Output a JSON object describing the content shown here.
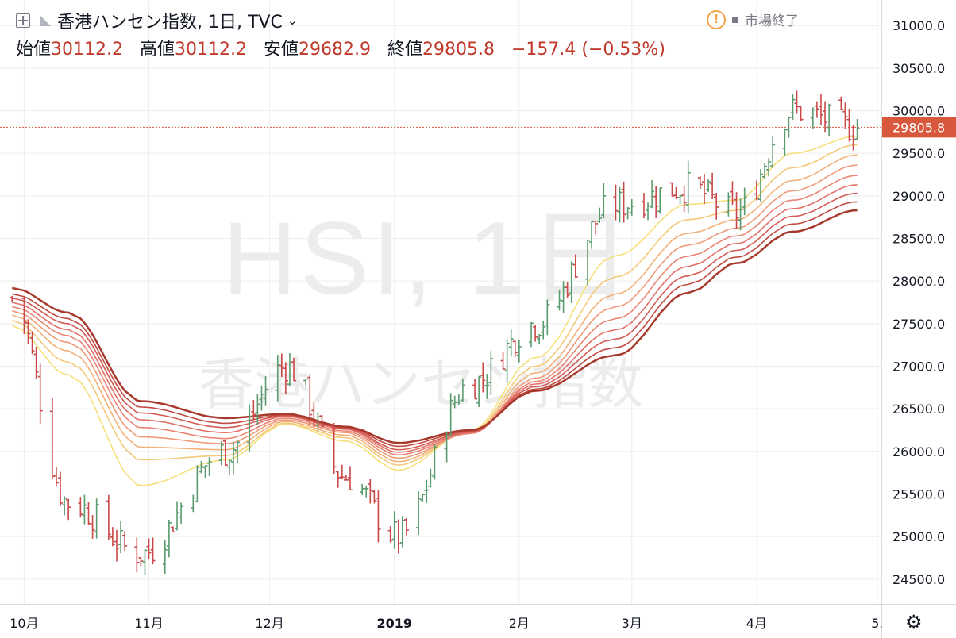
{
  "header": {
    "title": "香港ハンセン指数, 1日, TVC",
    "ohlc": {
      "open_label": "始値",
      "open": "30112.2",
      "high_label": "高値",
      "high": "30112.2",
      "low_label": "安値",
      "low": "29682.9",
      "close_label": "終値",
      "close": "29805.8",
      "change": "−157.4 (−0.53%)"
    },
    "status": "市場終了",
    "icons": [
      "plus-square-icon",
      "flag-icon",
      "chevron-down-icon",
      "warning-icon",
      "gear-icon"
    ]
  },
  "watermark": {
    "symbol": "HSI, 1日",
    "name": "香港ハンセン指数"
  },
  "colors": {
    "up": "#5a9b6d",
    "down": "#c94848",
    "grid": "#eeeeee",
    "price_tag": "#d7583c",
    "ribbon": [
      "#f5e07a",
      "#f4c97a",
      "#f2b27a",
      "#ef9a78",
      "#ea8574",
      "#e2716a",
      "#d35c55",
      "#c04a40",
      "#a8392d"
    ]
  },
  "chart_data": {
    "type": "ohlc-bars-with-moving-average-ribbon",
    "symbol": "HSI",
    "interval": "1日",
    "y_ticks": [
      24500,
      25000,
      25500,
      26000,
      26500,
      27000,
      27500,
      28000,
      28500,
      29000,
      29500,
      30000,
      30500,
      31000
    ],
    "y_tick_labels": [
      "24500.0",
      "25000.0",
      "25500.0",
      "26000.0",
      "26500.0",
      "27000.0",
      "27500.0",
      "28000.0",
      "28500.0",
      "29000.0",
      "29500.0",
      "30000.0",
      "30500.0",
      "31000.0"
    ],
    "x_ticks": [
      {
        "date": "2018-10-01",
        "label": "10月"
      },
      {
        "date": "2018-11-01",
        "label": "11月"
      },
      {
        "date": "2018-12-01",
        "label": "12月"
      },
      {
        "date": "2019-01-01",
        "label": "2019"
      },
      {
        "date": "2019-02-01",
        "label": "2月"
      },
      {
        "date": "2019-03-01",
        "label": "3月"
      },
      {
        "date": "2019-04-01",
        "label": "4月"
      },
      {
        "date": "2019-05-01",
        "label": "5."
      }
    ],
    "ylim": [
      24200,
      31300
    ],
    "last_price": 29805.8,
    "last_price_label": "29805.8",
    "anchors": [
      {
        "date": "2018-09-28",
        "close": 27800,
        "mas": [
          27480,
          27540,
          27600,
          27650,
          27700,
          27750,
          27800,
          27850,
          27920
        ]
      },
      {
        "date": "2018-10-12",
        "close": 25400,
        "mas": [
          26900,
          27050,
          27180,
          27280,
          27360,
          27430,
          27500,
          27560,
          27630
        ]
      },
      {
        "date": "2018-10-30",
        "close": 24800,
        "mas": [
          25600,
          25900,
          26050,
          26170,
          26280,
          26370,
          26450,
          26520,
          26590
        ]
      },
      {
        "date": "2018-11-20",
        "close": 26000,
        "mas": [
          25900,
          25950,
          26020,
          26090,
          26150,
          26220,
          26280,
          26330,
          26390
        ]
      },
      {
        "date": "2018-12-05",
        "close": 27000,
        "mas": [
          26320,
          26330,
          26350,
          26370,
          26390,
          26410,
          26420,
          26430,
          26440
        ]
      },
      {
        "date": "2018-12-20",
        "close": 25700,
        "mas": [
          26120,
          26160,
          26190,
          26220,
          26240,
          26260,
          26270,
          26280,
          26290
        ]
      },
      {
        "date": "2019-01-02",
        "close": 25000,
        "mas": [
          25780,
          25840,
          25880,
          25920,
          25960,
          25990,
          26020,
          26060,
          26100
        ]
      },
      {
        "date": "2019-01-20",
        "close": 26800,
        "mas": [
          26250,
          26230,
          26220,
          26210,
          26210,
          26220,
          26230,
          26240,
          26250
        ]
      },
      {
        "date": "2019-02-05",
        "close": 27500,
        "mas": [
          27100,
          27000,
          26920,
          26860,
          26820,
          26790,
          26760,
          26730,
          26710
        ]
      },
      {
        "date": "2019-02-25",
        "close": 28900,
        "mas": [
          28300,
          28050,
          27850,
          27700,
          27560,
          27430,
          27320,
          27220,
          27130
        ]
      },
      {
        "date": "2019-03-15",
        "close": 29100,
        "mas": [
          28900,
          28720,
          28560,
          28420,
          28290,
          28170,
          28060,
          27960,
          27860
        ]
      },
      {
        "date": "2019-03-27",
        "close": 28800,
        "mas": [
          28950,
          28830,
          28720,
          28620,
          28530,
          28440,
          28360,
          28280,
          28210
        ]
      },
      {
        "date": "2019-04-10",
        "close": 30000,
        "mas": [
          29500,
          29330,
          29180,
          29060,
          28950,
          28850,
          28760,
          28670,
          28580
        ]
      },
      {
        "date": "2019-04-26",
        "close": 29805.8,
        "mas": [
          29700,
          29600,
          29480,
          29360,
          29240,
          29130,
          29030,
          28930,
          28830
        ]
      }
    ]
  }
}
